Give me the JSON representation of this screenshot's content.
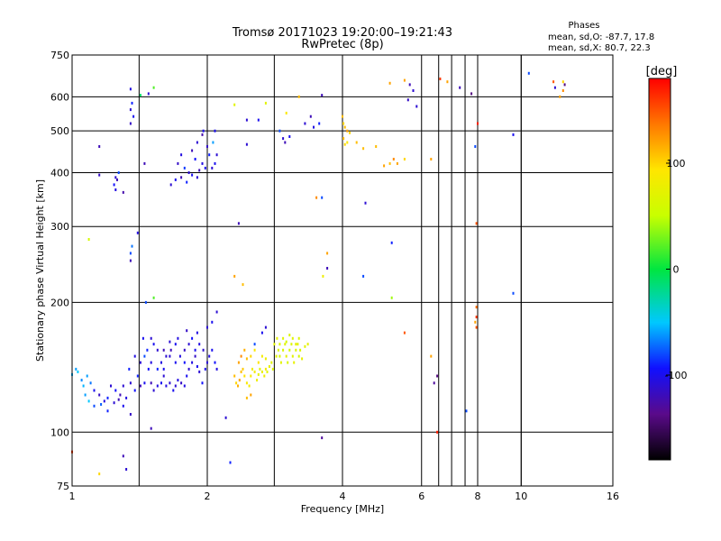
{
  "chart_data": {
    "type": "scatter",
    "title": "Tromsø 20171023 19:20:00–19:21:43",
    "subtitle": "RwPretec (8p)",
    "xlabel": "Frequency [MHz]",
    "ylabel": "Stationary phase Virtual Height [km]",
    "x_scale": "log",
    "y_scale": "log",
    "xlim": [
      1,
      16
    ],
    "ylim": [
      75,
      750
    ],
    "x_ticks": [
      1,
      2,
      4,
      6,
      8,
      10,
      16
    ],
    "y_ticks": [
      75,
      100,
      200,
      300,
      400,
      500,
      600,
      750
    ],
    "grid": true,
    "extra_x_gridlines": [
      1.41,
      2.82,
      6.55,
      7.0,
      7.5,
      10.0
    ],
    "stats": {
      "header": "Phases",
      "line_o": "mean, sd,O: -87.7, 17.8",
      "line_x": "mean, sd,X: 80.7, 22.3"
    },
    "colorbar": {
      "label": "[deg]",
      "ticks": [
        100,
        0,
        -100
      ],
      "range": [
        -180,
        180
      ]
    },
    "points": [
      [
        1.35,
        625,
        -105
      ],
      [
        1.36,
        580,
        -90
      ],
      [
        1.35,
        560,
        -110
      ],
      [
        1.37,
        540,
        -100
      ],
      [
        1.35,
        520,
        -115
      ],
      [
        1.52,
        630,
        20
      ],
      [
        1.42,
        605,
        -10
      ],
      [
        1.48,
        610,
        -110
      ],
      [
        1.15,
        460,
        -120
      ],
      [
        1.15,
        395,
        -115
      ],
      [
        1.25,
        390,
        -110
      ],
      [
        1.26,
        385,
        -120
      ],
      [
        1.24,
        375,
        -95
      ],
      [
        1.25,
        365,
        -105
      ],
      [
        1.3,
        360,
        -125
      ],
      [
        1.27,
        400,
        -80
      ],
      [
        1.45,
        420,
        -120
      ],
      [
        1.4,
        290,
        -105
      ],
      [
        1.35,
        260,
        -80
      ],
      [
        1.35,
        250,
        -120
      ],
      [
        1.36,
        270,
        -70
      ],
      [
        1.09,
        280,
        60
      ],
      [
        1.52,
        205,
        20
      ],
      [
        1.46,
        200,
        -80
      ],
      [
        1.66,
        375,
        -110
      ],
      [
        1.7,
        385,
        -100
      ],
      [
        1.75,
        390,
        -120
      ],
      [
        1.8,
        380,
        -90
      ],
      [
        1.82,
        400,
        -110
      ],
      [
        1.85,
        395,
        -100
      ],
      [
        1.9,
        390,
        -110
      ],
      [
        1.92,
        405,
        -120
      ],
      [
        1.95,
        420,
        -105
      ],
      [
        1.98,
        410,
        -100
      ],
      [
        1.88,
        430,
        -95
      ],
      [
        1.85,
        450,
        -120
      ],
      [
        1.9,
        470,
        -110
      ],
      [
        1.95,
        490,
        -125
      ],
      [
        1.96,
        500,
        -100
      ],
      [
        2.0,
        460,
        -115
      ],
      [
        2.02,
        440,
        -90
      ],
      [
        2.05,
        410,
        -110
      ],
      [
        2.08,
        420,
        -100
      ],
      [
        2.1,
        440,
        -110
      ],
      [
        2.06,
        470,
        -60
      ],
      [
        2.08,
        500,
        -100
      ],
      [
        1.72,
        420,
        -115
      ],
      [
        1.75,
        440,
        -105
      ],
      [
        1.78,
        410,
        -85
      ],
      [
        2.3,
        575,
        70
      ],
      [
        2.45,
        530,
        -110
      ],
      [
        2.6,
        530,
        -100
      ],
      [
        2.45,
        465,
        -110
      ],
      [
        2.7,
        580,
        70
      ],
      [
        3.0,
        550,
        90
      ],
      [
        3.2,
        600,
        110
      ],
      [
        2.9,
        500,
        -80
      ],
      [
        2.95,
        480,
        -110
      ],
      [
        2.98,
        470,
        -120
      ],
      [
        3.05,
        485,
        -100
      ],
      [
        3.3,
        520,
        -110
      ],
      [
        3.4,
        540,
        -120
      ],
      [
        3.45,
        510,
        -105
      ],
      [
        3.6,
        605,
        -120
      ],
      [
        3.55,
        520,
        -90
      ],
      [
        4.0,
        540,
        110
      ],
      [
        4.02,
        520,
        100
      ],
      [
        4.05,
        510,
        110
      ],
      [
        4.1,
        500,
        120
      ],
      [
        4.15,
        495,
        100
      ],
      [
        4.02,
        480,
        110
      ],
      [
        4.05,
        465,
        100
      ],
      [
        4.3,
        470,
        110
      ],
      [
        4.1,
        470,
        90
      ],
      [
        4.45,
        455,
        110
      ],
      [
        4.75,
        460,
        110
      ],
      [
        4.95,
        415,
        120
      ],
      [
        5.1,
        420,
        110
      ],
      [
        5.2,
        430,
        130
      ],
      [
        5.3,
        420,
        120
      ],
      [
        5.5,
        430,
        100
      ],
      [
        4.5,
        340,
        -110
      ],
      [
        5.5,
        655,
        120
      ],
      [
        5.1,
        645,
        120
      ],
      [
        5.65,
        640,
        -120
      ],
      [
        5.75,
        620,
        -110
      ],
      [
        5.85,
        570,
        -110
      ],
      [
        5.6,
        590,
        -115
      ],
      [
        6.6,
        660,
        160
      ],
      [
        6.85,
        650,
        120
      ],
      [
        7.3,
        630,
        -120
      ],
      [
        7.75,
        610,
        -140
      ],
      [
        8.0,
        520,
        170
      ],
      [
        7.9,
        460,
        -80
      ],
      [
        7.95,
        305,
        150
      ],
      [
        7.95,
        195,
        140
      ],
      [
        7.95,
        185,
        160
      ],
      [
        7.95,
        175,
        150
      ],
      [
        7.9,
        180,
        120
      ],
      [
        9.6,
        490,
        -100
      ],
      [
        9.6,
        210,
        -80
      ],
      [
        10.4,
        680,
        -80
      ],
      [
        11.8,
        650,
        150
      ],
      [
        11.9,
        630,
        -110
      ],
      [
        12.4,
        650,
        100
      ],
      [
        12.5,
        640,
        -140
      ],
      [
        12.4,
        620,
        130
      ],
      [
        12.2,
        600,
        120
      ],
      [
        6.3,
        430,
        120
      ],
      [
        6.5,
        100,
        170
      ],
      [
        6.4,
        130,
        -130
      ],
      [
        6.3,
        150,
        120
      ],
      [
        5.5,
        170,
        150
      ],
      [
        5.15,
        275,
        -90
      ],
      [
        5.15,
        205,
        40
      ],
      [
        4.45,
        230,
        -80
      ],
      [
        3.7,
        260,
        120
      ],
      [
        3.7,
        240,
        -120
      ],
      [
        3.62,
        230,
        80
      ],
      [
        3.6,
        350,
        -80
      ],
      [
        3.5,
        350,
        130
      ],
      [
        2.35,
        305,
        -120
      ],
      [
        2.3,
        230,
        120
      ],
      [
        2.4,
        220,
        110
      ],
      [
        2.55,
        160,
        -80
      ],
      [
        2.65,
        170,
        -100
      ],
      [
        2.7,
        175,
        -110
      ],
      [
        2.1,
        190,
        -110
      ],
      [
        2.05,
        180,
        -100
      ],
      [
        2.0,
        175,
        -110
      ],
      [
        1.9,
        170,
        -105
      ],
      [
        1.85,
        165,
        -95
      ],
      [
        1.8,
        172,
        -115
      ],
      [
        1.7,
        160,
        -100
      ],
      [
        1.65,
        150,
        -110
      ],
      [
        1.6,
        155,
        -120
      ],
      [
        1.55,
        140,
        -90
      ],
      [
        1.5,
        145,
        -105
      ],
      [
        1.45,
        130,
        -100
      ],
      [
        1.42,
        128,
        -120
      ],
      [
        1.4,
        135,
        -90
      ],
      [
        1.38,
        125,
        -95
      ],
      [
        1.35,
        130,
        -110
      ],
      [
        1.32,
        120,
        -105
      ],
      [
        1.3,
        115,
        -100
      ],
      [
        1.28,
        122,
        -120
      ],
      [
        1.25,
        125,
        -95
      ],
      [
        1.22,
        128,
        -110
      ],
      [
        1.2,
        120,
        -90
      ],
      [
        1.18,
        118,
        -105
      ],
      [
        1.15,
        122,
        -115
      ],
      [
        1.12,
        125,
        -100
      ],
      [
        1.1,
        130,
        -70
      ],
      [
        1.08,
        135,
        -60
      ],
      [
        1.06,
        128,
        -55
      ],
      [
        1.05,
        132,
        -65
      ],
      [
        1.03,
        138,
        -50
      ],
      [
        1.02,
        140,
        -60
      ],
      [
        1.0,
        136,
        -55
      ],
      [
        1.07,
        122,
        -60
      ],
      [
        1.09,
        118,
        -50
      ],
      [
        1.12,
        115,
        -80
      ],
      [
        1.16,
        116,
        -75
      ],
      [
        1.2,
        112,
        -90
      ],
      [
        1.24,
        117,
        -110
      ],
      [
        1.27,
        119,
        -120
      ],
      [
        1.3,
        128,
        -110
      ],
      [
        1.34,
        140,
        -90
      ],
      [
        1.38,
        150,
        -105
      ],
      [
        1.42,
        145,
        -110
      ],
      [
        1.45,
        150,
        -80
      ],
      [
        1.48,
        140,
        -95
      ],
      [
        1.5,
        130,
        -120
      ],
      [
        1.52,
        125,
        -110
      ],
      [
        1.55,
        128,
        -105
      ],
      [
        1.58,
        130,
        -100
      ],
      [
        1.6,
        135,
        -110
      ],
      [
        1.62,
        128,
        -105
      ],
      [
        1.65,
        130,
        -110
      ],
      [
        1.68,
        125,
        -100
      ],
      [
        1.7,
        128,
        -110
      ],
      [
        1.72,
        132,
        -105
      ],
      [
        1.75,
        130,
        -115
      ],
      [
        1.78,
        128,
        -105
      ],
      [
        1.8,
        135,
        -100
      ],
      [
        1.82,
        140,
        -110
      ],
      [
        1.85,
        145,
        -105
      ],
      [
        1.88,
        150,
        -115
      ],
      [
        1.9,
        142,
        -100
      ],
      [
        1.92,
        138,
        -110
      ],
      [
        1.95,
        130,
        -95
      ],
      [
        1.98,
        140,
        -100
      ],
      [
        2.0,
        145,
        -110
      ],
      [
        2.02,
        150,
        -105
      ],
      [
        2.05,
        155,
        -100
      ],
      [
        2.08,
        145,
        -95
      ],
      [
        2.1,
        140,
        -105
      ],
      [
        1.6,
        140,
        -100
      ],
      [
        1.62,
        150,
        -110
      ],
      [
        1.66,
        155,
        -120
      ],
      [
        1.7,
        145,
        -100
      ],
      [
        1.74,
        150,
        -105
      ],
      [
        1.78,
        145,
        -95
      ],
      [
        1.58,
        145,
        -105
      ],
      [
        1.55,
        155,
        -110
      ],
      [
        1.52,
        160,
        -100
      ],
      [
        1.5,
        165,
        -110
      ],
      [
        1.47,
        155,
        -90
      ],
      [
        1.44,
        165,
        -100
      ],
      [
        1.65,
        162,
        -110
      ],
      [
        1.72,
        165,
        -105
      ],
      [
        1.78,
        155,
        -115
      ],
      [
        1.82,
        160,
        -110
      ],
      [
        1.88,
        155,
        -100
      ],
      [
        1.92,
        160,
        -105
      ],
      [
        1.96,
        155,
        -110
      ],
      [
        2.3,
        135,
        110
      ],
      [
        2.32,
        130,
        100
      ],
      [
        2.34,
        128,
        115
      ],
      [
        2.36,
        132,
        120
      ],
      [
        2.38,
        138,
        110
      ],
      [
        2.4,
        140,
        105
      ],
      [
        2.42,
        135,
        95
      ],
      [
        2.45,
        130,
        90
      ],
      [
        2.48,
        128,
        85
      ],
      [
        2.5,
        135,
        90
      ],
      [
        2.52,
        140,
        80
      ],
      [
        2.55,
        138,
        85
      ],
      [
        2.58,
        132,
        80
      ],
      [
        2.6,
        136,
        75
      ],
      [
        2.62,
        140,
        70
      ],
      [
        2.65,
        138,
        75
      ],
      [
        2.68,
        135,
        80
      ],
      [
        2.7,
        140,
        85
      ],
      [
        2.72,
        138,
        70
      ],
      [
        2.75,
        142,
        75
      ],
      [
        2.78,
        145,
        70
      ],
      [
        2.8,
        140,
        65
      ],
      [
        2.85,
        150,
        70
      ],
      [
        2.88,
        155,
        65
      ],
      [
        2.9,
        150,
        60
      ],
      [
        2.92,
        145,
        70
      ],
      [
        2.95,
        155,
        65
      ],
      [
        2.98,
        160,
        70
      ],
      [
        3.0,
        150,
        75
      ],
      [
        3.02,
        145,
        65
      ],
      [
        3.05,
        155,
        60
      ],
      [
        3.08,
        160,
        65
      ],
      [
        3.1,
        150,
        70
      ],
      [
        3.12,
        145,
        75
      ],
      [
        3.15,
        155,
        65
      ],
      [
        3.18,
        160,
        70
      ],
      [
        3.2,
        150,
        60
      ],
      [
        3.22,
        155,
        65
      ],
      [
        3.25,
        148,
        75
      ],
      [
        2.35,
        145,
        120
      ],
      [
        2.38,
        150,
        130
      ],
      [
        2.42,
        155,
        115
      ],
      [
        2.45,
        148,
        110
      ],
      [
        2.5,
        150,
        100
      ],
      [
        2.55,
        155,
        90
      ],
      [
        2.6,
        145,
        95
      ],
      [
        2.65,
        150,
        85
      ],
      [
        2.7,
        148,
        80
      ],
      [
        2.82,
        160,
        70
      ],
      [
        2.86,
        165,
        75
      ],
      [
        2.9,
        160,
        65
      ],
      [
        2.95,
        165,
        70
      ],
      [
        3.0,
        162,
        60
      ],
      [
        3.05,
        168,
        65
      ],
      [
        3.1,
        165,
        70
      ],
      [
        3.15,
        160,
        75
      ],
      [
        3.2,
        165,
        65
      ],
      [
        3.3,
        158,
        70
      ],
      [
        3.35,
        160,
        75
      ],
      [
        2.45,
        120,
        110
      ],
      [
        2.5,
        122,
        120
      ],
      [
        2.2,
        108,
        -110
      ],
      [
        2.25,
        85,
        -90
      ],
      [
        1.3,
        88,
        -120
      ],
      [
        1.32,
        82,
        -110
      ],
      [
        1.15,
        80,
        100
      ],
      [
        1.0,
        90,
        160
      ],
      [
        1.35,
        110,
        -115
      ],
      [
        1.5,
        102,
        -120
      ],
      [
        3.6,
        97,
        -130
      ],
      [
        6.5,
        135,
        -140
      ],
      [
        7.55,
        112,
        -80
      ]
    ]
  }
}
